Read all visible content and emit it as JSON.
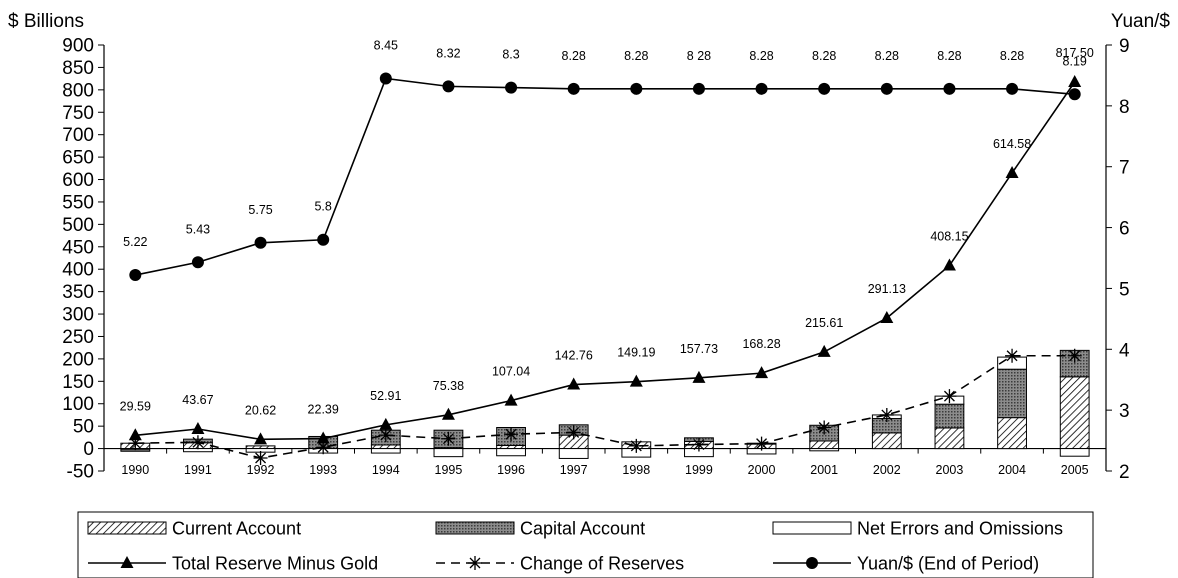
{
  "chart_data": {
    "type": "bar",
    "subtype": "stacked bar with line overlays (dual y-axis)",
    "categories": [
      "1990",
      "1991",
      "1992",
      "1993",
      "1994",
      "1995",
      "1996",
      "1997",
      "1998",
      "1999",
      "2000",
      "2001",
      "2002",
      "2003",
      "2004",
      "2005"
    ],
    "y_left": {
      "title": "$ Billions",
      "ylim": [
        -50,
        900
      ],
      "ticks": [
        "-50",
        "0",
        "50",
        "100",
        "150",
        "200",
        "250",
        "300",
        "350",
        "400",
        "450",
        "500",
        "550",
        "600",
        "650",
        "700",
        "750",
        "800",
        "850",
        "900"
      ]
    },
    "y_right": {
      "title": "Yuan/$",
      "ylim": [
        2,
        9
      ],
      "ticks": [
        "2",
        "3",
        "4",
        "5",
        "6",
        "7",
        "8",
        "9"
      ]
    },
    "grid": false,
    "legend_position": "bottom",
    "bar_series": [
      {
        "name": "Current Account",
        "pattern": "diagonal-hatch",
        "values": [
          12,
          13,
          6,
          0,
          8,
          2,
          7,
          30,
          15,
          16,
          10,
          17,
          35,
          46,
          69,
          160
        ]
      },
      {
        "name": "Capital Account",
        "pattern": "dark-dotted",
        "values": [
          -3,
          8,
          0,
          27,
          33,
          39,
          40,
          23,
          0,
          8,
          2,
          35,
          32,
          53,
          108,
          59
        ]
      },
      {
        "name": "Net Errors and Omissions",
        "pattern": "white",
        "values": [
          -3,
          -7,
          -8,
          -10,
          -10,
          -18,
          -16,
          -22,
          -19,
          -18,
          -12,
          -5,
          8,
          18,
          27,
          -17
        ]
      }
    ],
    "line_series": [
      {
        "name": "Total Reserve Minus Gold",
        "axis": "left",
        "marker": "triangle",
        "values": [
          29.59,
          43.67,
          20.62,
          22.39,
          52.91,
          75.38,
          107.04,
          142.76,
          149.19,
          157.73,
          168.28,
          215.61,
          291.13,
          408.15,
          614.58,
          817.5
        ],
        "labels": [
          "29.59",
          "43.67",
          "20.62",
          "22.39",
          "52.91",
          "75.38",
          "107.04",
          "142.76",
          "149.19",
          "157.73",
          "168.28",
          "215.61",
          "291.13",
          "408.15",
          "614.58",
          "817.50"
        ]
      },
      {
        "name": "Change of Reserves",
        "axis": "left",
        "marker": "asterisk",
        "line_style": "dashed",
        "values": [
          12,
          14,
          -21,
          3,
          30,
          22,
          32,
          36,
          6,
          9,
          11,
          47,
          75,
          117,
          207,
          207
        ]
      },
      {
        "name": "Yuan/$ (End of Period)",
        "axis": "right",
        "marker": "circle",
        "values": [
          5.22,
          5.43,
          5.75,
          5.8,
          8.45,
          8.32,
          8.3,
          8.28,
          8.28,
          8.28,
          8.28,
          8.28,
          8.28,
          8.28,
          8.28,
          8.19
        ],
        "labels": [
          "5.22",
          "5.43",
          "5.75",
          "5.8",
          "8.45",
          "8.32",
          "8.3",
          "8.28",
          "8.28",
          "8 28",
          "8.28",
          "8.28",
          "8.28",
          "8.28",
          "8.28",
          "8.19"
        ]
      }
    ],
    "legend": [
      {
        "name": "Current Account",
        "swatch": "hatch-bar"
      },
      {
        "name": "Capital Account",
        "swatch": "dotted-bar"
      },
      {
        "name": "Net Errors and Omissions",
        "swatch": "white-bar"
      },
      {
        "name": "Total Reserve Minus Gold",
        "swatch": "line-triangle"
      },
      {
        "name": "Change of Reserves",
        "swatch": "dashed-asterisk"
      },
      {
        "name": "Yuan/$ (End of Period)",
        "swatch": "line-circle"
      }
    ]
  }
}
